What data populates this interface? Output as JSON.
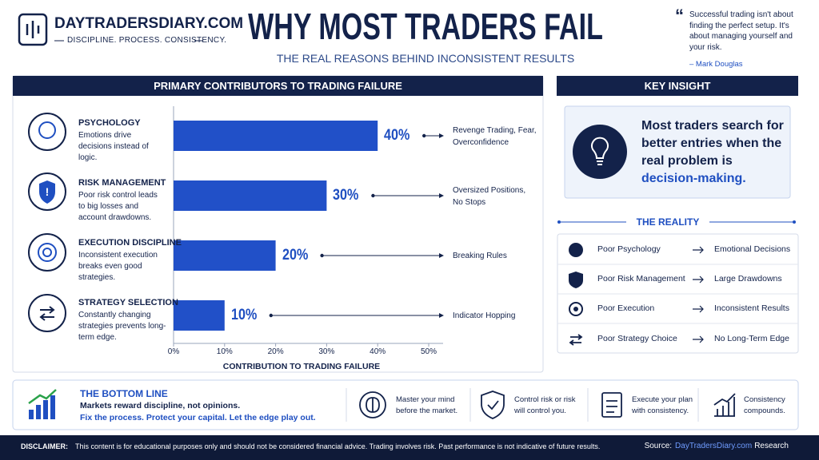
{
  "header": {
    "brand": "DAYTRADERSDIARY.COM",
    "tagline": "DISCIPLINE. PROCESS. CONSISTENCY.",
    "title": "WHY MOST TRADERS FAIL",
    "subtitle": "THE REAL REASONS BEHIND INCONSISTENT RESULTS"
  },
  "quote": {
    "text": "Successful trading isn't about finding the perfect setup. It's about managing yourself and your risk.",
    "author": "– Mark Douglas"
  },
  "chart_data": {
    "type": "bar",
    "orientation": "horizontal",
    "title": "PRIMARY CONTRIBUTORS TO TRADING FAILURE",
    "categories": [
      "PSYCHOLOGY",
      "RISK MANAGEMENT",
      "EXECUTION DISCIPLINE",
      "STRATEGY SELECTION"
    ],
    "descriptions": [
      "Emotions drive decisions instead of logic.",
      "Poor risk control leads to big losses and account drawdowns.",
      "Inconsistent execution breaks even good strategies.",
      "Constantly changing strategies prevents long-term edge."
    ],
    "values": [
      40,
      30,
      20,
      10
    ],
    "value_labels": [
      "40%",
      "30%",
      "20%",
      "10%"
    ],
    "annotations": [
      "Revenge Trading, Fear, Overconfidence",
      "Oversized Positions, No Stops",
      "Breaking Rules",
      "Indicator Hopping"
    ],
    "xlim": [
      0,
      50
    ],
    "xticks": [
      {
        "value": 0,
        "label": "0%"
      },
      {
        "value": 10,
        "label": "10%"
      },
      {
        "value": 20,
        "label": "20%"
      },
      {
        "value": 30,
        "label": "30%"
      },
      {
        "value": 40,
        "label": "40%"
      },
      {
        "value": 50,
        "label": "50%"
      }
    ],
    "xlabel": "CONTRIBUTION TO TRADING FAILURE",
    "color": "#2150c8"
  },
  "key_insight": {
    "title": "KEY INSIGHT",
    "text": "Most traders search for better entries when the real problem is",
    "highlight": "decision-making."
  },
  "reality": {
    "title": "THE REALITY",
    "rows": [
      {
        "cause": "Poor Psychology",
        "effect": "Emotional Decisions"
      },
      {
        "cause": "Poor Risk Management",
        "effect": "Large Drawdowns"
      },
      {
        "cause": "Poor Execution",
        "effect": "Inconsistent Results"
      },
      {
        "cause": "Poor Strategy Choice",
        "effect": "No Long-Term Edge"
      }
    ]
  },
  "bottom_line": {
    "title": "THE BOTTOM LINE",
    "line1": "Markets reward discipline, not opinions.",
    "line2": "Fix the process. Protect your capital. Let the edge play out.",
    "tips": [
      "Master your mind before the market.",
      "Control risk or risk will control you.",
      "Execute your plan with consistency.",
      "Consistency compounds."
    ]
  },
  "footer": {
    "disclaimer_label": "DISCLAIMER:",
    "disclaimer": "This content is for educational purposes only and should not be considered financial advice. Trading involves risk. Past performance is not indicative of future results.",
    "source_label": "Source:",
    "source_link": "DayTradersDiary.com",
    "source_suffix": "Research"
  }
}
